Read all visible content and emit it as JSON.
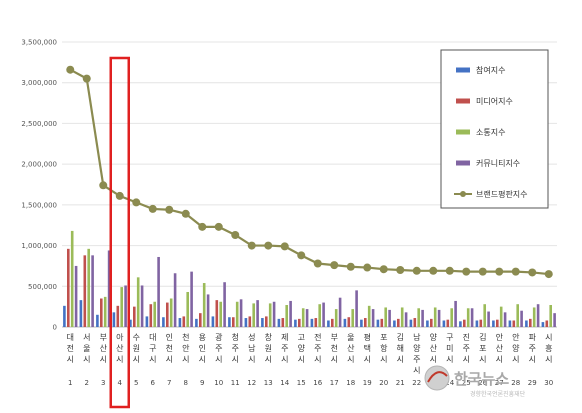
{
  "chart_data": {
    "type": "bar",
    "categories": [
      "대전시",
      "서울시",
      "부산시",
      "아산시",
      "수원시",
      "대구시",
      "인천시",
      "천안시",
      "용인시",
      "광주시",
      "청주시",
      "성남시",
      "창원시",
      "제주시",
      "고양시",
      "전주시",
      "부천시",
      "울산시",
      "평택시",
      "포항시",
      "김해시",
      "남양주시",
      "양산시",
      "구미시",
      "진주시",
      "김포시",
      "안산시",
      "안양시",
      "파주시",
      "시흥시"
    ],
    "ranks": [
      "1",
      "2",
      "3",
      "4",
      "5",
      "6",
      "7",
      "8",
      "9",
      "10",
      "11",
      "12",
      "13",
      "14",
      "15",
      "16",
      "17",
      "18",
      "19",
      "20",
      "21",
      "22",
      "23",
      "24",
      "25",
      "26",
      "27",
      "28",
      "29",
      "30"
    ],
    "series": [
      {
        "name": "참여지수",
        "color": "#4472c4",
        "values": [
          260000,
          330000,
          150000,
          180000,
          90000,
          130000,
          120000,
          110000,
          100000,
          130000,
          120000,
          110000,
          110000,
          100000,
          90000,
          100000,
          80000,
          100000,
          90000,
          90000,
          80000,
          90000,
          80000,
          80000,
          70000,
          80000,
          80000,
          80000,
          80000,
          60000
        ]
      },
      {
        "name": "미디어지수",
        "color": "#c0504d",
        "values": [
          960000,
          880000,
          350000,
          260000,
          250000,
          280000,
          300000,
          130000,
          170000,
          330000,
          120000,
          130000,
          130000,
          110000,
          100000,
          110000,
          100000,
          120000,
          110000,
          100000,
          100000,
          110000,
          100000,
          90000,
          90000,
          90000,
          90000,
          80000,
          100000,
          80000
        ]
      },
      {
        "name": "소통지수",
        "color": "#9bbb59",
        "values": [
          1180000,
          960000,
          370000,
          490000,
          610000,
          310000,
          350000,
          430000,
          540000,
          310000,
          310000,
          290000,
          290000,
          270000,
          230000,
          280000,
          220000,
          220000,
          260000,
          240000,
          240000,
          230000,
          240000,
          230000,
          230000,
          280000,
          250000,
          280000,
          240000,
          270000
        ]
      },
      {
        "name": "커뮤니티지수",
        "color": "#8064a2",
        "values": [
          750000,
          880000,
          940000,
          510000,
          510000,
          860000,
          660000,
          680000,
          400000,
          550000,
          340000,
          330000,
          310000,
          320000,
          220000,
          300000,
          360000,
          450000,
          220000,
          210000,
          180000,
          210000,
          210000,
          320000,
          230000,
          190000,
          180000,
          200000,
          280000,
          170000
        ]
      },
      {
        "name": "브랜드평판지수",
        "color": "#8b8b50",
        "type": "line",
        "values": [
          3160000,
          3050000,
          1740000,
          1610000,
          1530000,
          1450000,
          1440000,
          1390000,
          1230000,
          1230000,
          1130000,
          1000000,
          1000000,
          990000,
          880000,
          780000,
          760000,
          740000,
          730000,
          710000,
          700000,
          690000,
          690000,
          690000,
          680000,
          680000,
          680000,
          680000,
          670000,
          650000
        ]
      }
    ],
    "ylim": [
      0,
      3500000
    ],
    "y_ticks": [
      "0",
      "500,000",
      "1,000,000",
      "1,500,000",
      "2,000,000",
      "2,500,000",
      "3,000,000",
      "3,500,000"
    ],
    "y_tick_values": [
      0,
      500000,
      1000000,
      1500000,
      2000000,
      2500000,
      3000000,
      3500000
    ],
    "grid": true,
    "legend_position": "right",
    "highlight_index": 3,
    "highlight_color": "#e02020"
  },
  "watermark": {
    "name": "한국뉴스",
    "sub": "경향한국언론진흥재단"
  }
}
